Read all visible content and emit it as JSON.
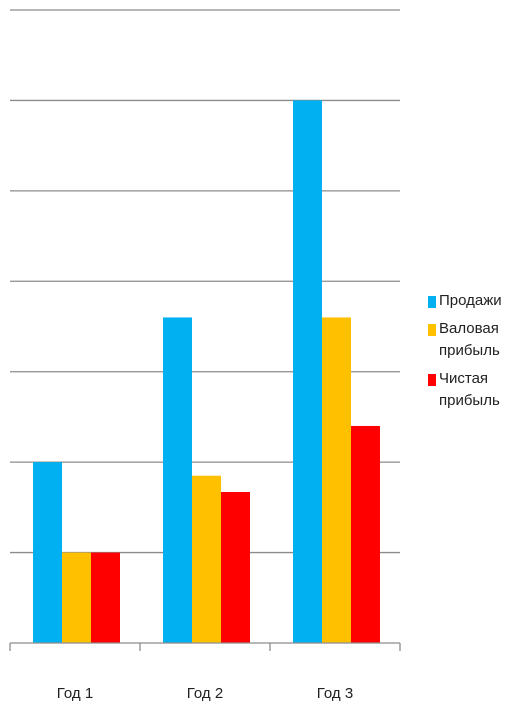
{
  "chart_data": {
    "type": "bar",
    "categories": [
      "Год 1",
      "Год 2",
      "Год 3"
    ],
    "series": [
      {
        "name": "Продажи",
        "color": "#00b0f0",
        "values": [
          2,
          3.6,
          6
        ]
      },
      {
        "name": "Валовая прибыль",
        "color": "#ffc000",
        "values": [
          1,
          1.85,
          3.6
        ]
      },
      {
        "name": "Чистая прибыль",
        "color": "#ff0000",
        "values": [
          1,
          1.67,
          2.4
        ]
      }
    ],
    "ylim": [
      0,
      7
    ],
    "grid": true,
    "legend_position": "right"
  }
}
